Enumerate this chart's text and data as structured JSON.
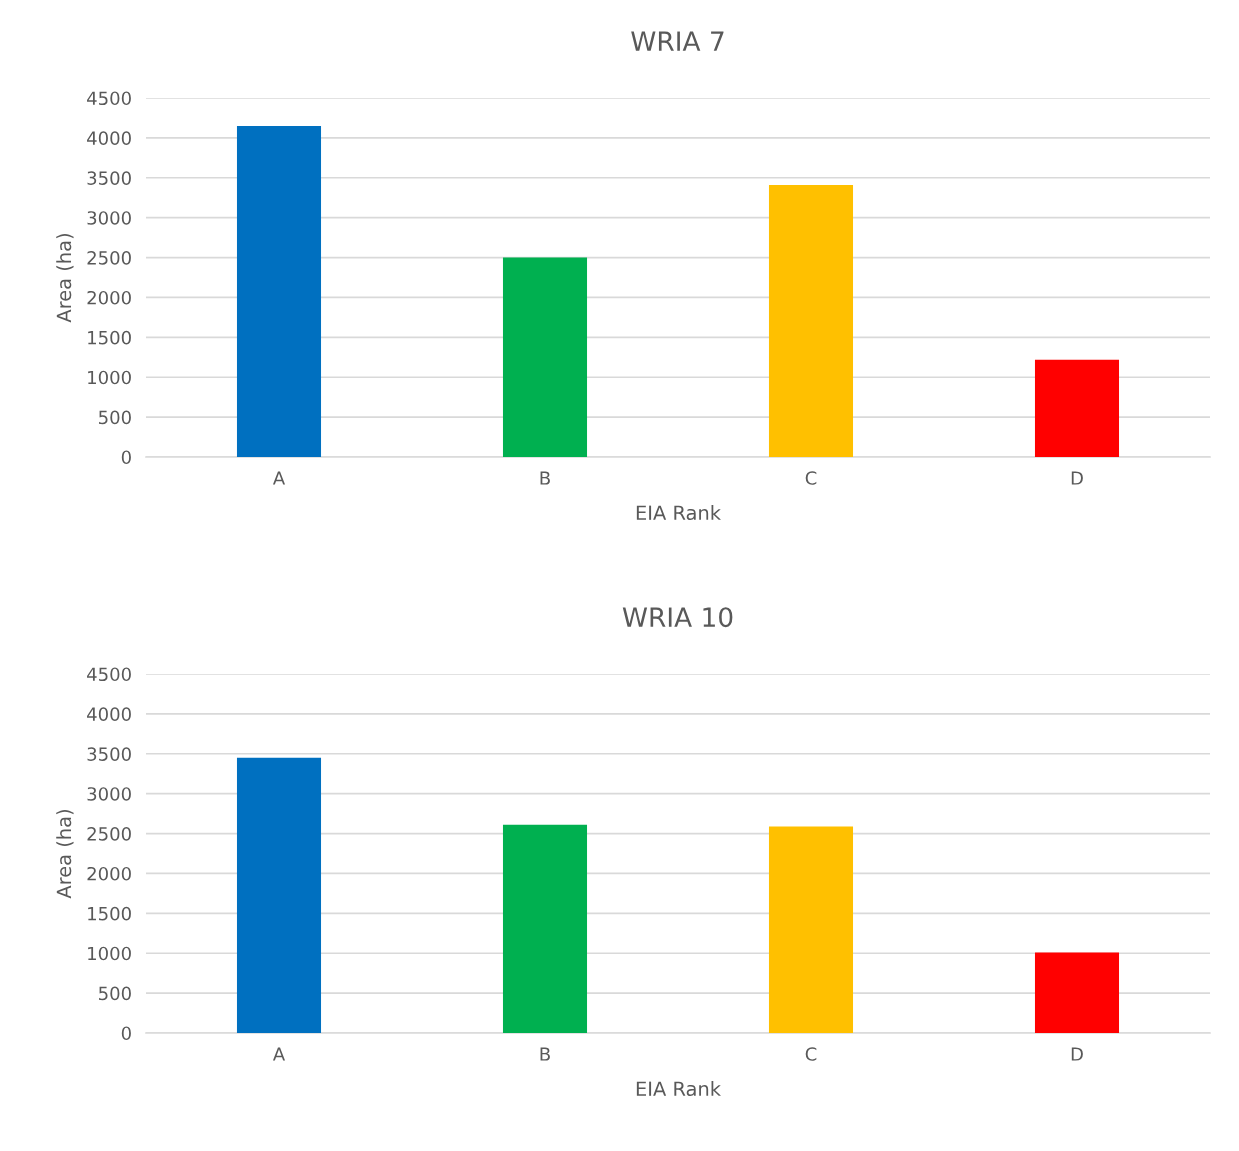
{
  "chart_data": [
    {
      "type": "bar",
      "title": "WRIA 7",
      "xlabel": "EIA Rank",
      "ylabel": "Area (ha)",
      "categories": [
        "A",
        "B",
        "C",
        "D"
      ],
      "values": [
        4150,
        2500,
        3410,
        1220
      ],
      "colors": [
        "#0070c0",
        "#00b050",
        "#ffc000",
        "#ff0000"
      ],
      "ylim": [
        0,
        4500
      ],
      "yticks": [
        0,
        500,
        1000,
        1500,
        2000,
        2500,
        3000,
        3500,
        4000,
        4500
      ],
      "grid": "y",
      "legend": false
    },
    {
      "type": "bar",
      "title": "WRIA 10",
      "xlabel": "EIA Rank",
      "ylabel": "Area (ha)",
      "categories": [
        "A",
        "B",
        "C",
        "D"
      ],
      "values": [
        3450,
        2610,
        2590,
        1010
      ],
      "colors": [
        "#0070c0",
        "#00b050",
        "#ffc000",
        "#ff0000"
      ],
      "ylim": [
        0,
        4500
      ],
      "yticks": [
        0,
        500,
        1000,
        1500,
        2000,
        2500,
        3000,
        3500,
        4000,
        4500
      ],
      "grid": "y",
      "legend": false
    }
  ]
}
